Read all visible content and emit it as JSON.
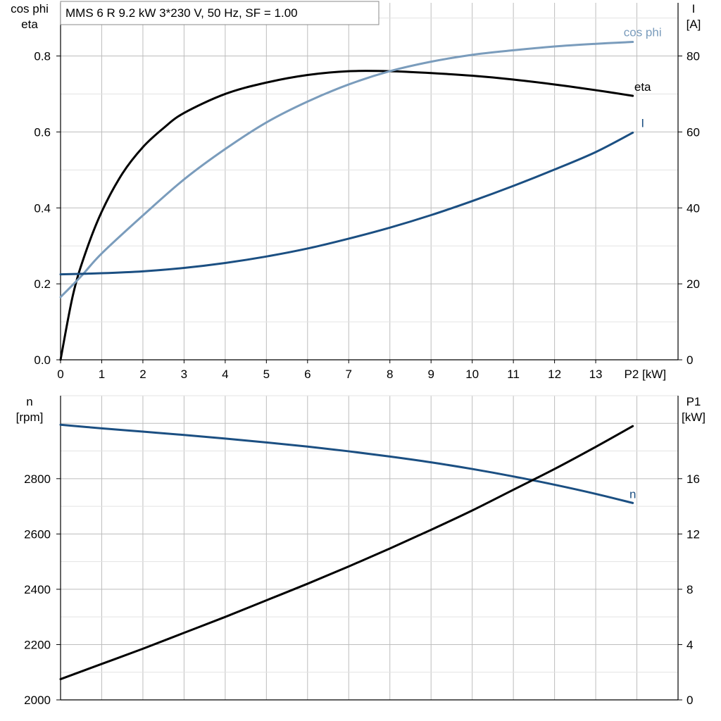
{
  "title_box": "MMS 6 R   9.2 kW   3*230 V, 50 Hz, SF = 1.00",
  "colors": {
    "eta": "#000000",
    "cos_phi": "#7a9cbc",
    "current": "#1b4f82",
    "n": "#1b4f82",
    "p1": "#000000"
  },
  "chart_data": [
    {
      "type": "line",
      "id": "top",
      "left_axis_label": [
        "cos phi",
        "eta"
      ],
      "right_axis_label": [
        "I",
        "[A]"
      ],
      "xlabel": "P2 [kW]",
      "xlim": [
        0,
        15
      ],
      "ylim_left": [
        0,
        0.94
      ],
      "ylim_right": [
        0,
        94
      ],
      "x_ticks": [
        0,
        1,
        2,
        3,
        4,
        5,
        6,
        7,
        8,
        9,
        10,
        11,
        12,
        13
      ],
      "left_ticks": [
        0.0,
        0.2,
        0.4,
        0.6,
        0.8
      ],
      "left_tick_labels": [
        "0.0",
        "0.2",
        "0.4",
        "0.6",
        "0.8"
      ],
      "right_ticks": [
        0,
        20,
        40,
        60,
        80
      ],
      "series": [
        {
          "name": "eta",
          "axis": "left",
          "color_key": "eta",
          "x": [
            0,
            0.3,
            0.6,
            1,
            1.5,
            2,
            2.5,
            3,
            4,
            5,
            6,
            7,
            8,
            9,
            10,
            11,
            12,
            13,
            13.9
          ],
          "y": [
            0.0,
            0.17,
            0.28,
            0.39,
            0.49,
            0.56,
            0.61,
            0.65,
            0.7,
            0.73,
            0.75,
            0.76,
            0.76,
            0.755,
            0.748,
            0.738,
            0.725,
            0.71,
            0.695
          ]
        },
        {
          "name": "cos phi",
          "axis": "left",
          "color_key": "cos_phi",
          "x": [
            0,
            0.5,
            1,
            2,
            3,
            4,
            5,
            6,
            7,
            8,
            9,
            10,
            11,
            12,
            13,
            13.9
          ],
          "y": [
            0.165,
            0.22,
            0.28,
            0.38,
            0.475,
            0.555,
            0.625,
            0.68,
            0.725,
            0.76,
            0.785,
            0.803,
            0.815,
            0.825,
            0.832,
            0.837
          ]
        },
        {
          "name": "I",
          "axis": "right",
          "color_key": "current",
          "x": [
            0,
            1,
            2,
            3,
            4,
            5,
            6,
            7,
            8,
            9,
            10,
            11,
            12,
            13,
            13.9
          ],
          "y": [
            22.5,
            22.8,
            23.3,
            24.2,
            25.5,
            27.2,
            29.3,
            31.9,
            34.8,
            38.1,
            41.8,
            45.8,
            50.1,
            54.7,
            59.8
          ]
        }
      ]
    },
    {
      "type": "line",
      "id": "bottom",
      "left_axis_label": [
        "n",
        "[rpm]"
      ],
      "right_axis_label": [
        "P1",
        "[kW]"
      ],
      "xlim": [
        0,
        15
      ],
      "ylim_left": [
        2000,
        3100
      ],
      "ylim_right": [
        0,
        22
      ],
      "left_ticks": [
        2000,
        2200,
        2400,
        2600,
        2800
      ],
      "right_ticks": [
        0,
        4,
        8,
        12,
        16
      ],
      "series": [
        {
          "name": "n",
          "axis": "left",
          "color_key": "n",
          "x": [
            0,
            1,
            2,
            3,
            4,
            5,
            6,
            7,
            8,
            9,
            10,
            11,
            12,
            13,
            13.9
          ],
          "y": [
            2995,
            2982,
            2970,
            2958,
            2945,
            2931,
            2916,
            2899,
            2880,
            2859,
            2835,
            2808,
            2778,
            2745,
            2712
          ]
        },
        {
          "name": "",
          "axis": "right",
          "color_key": "p1",
          "x": [
            0,
            1,
            2,
            3,
            4,
            5,
            6,
            7,
            8,
            9,
            10,
            11,
            12,
            13,
            13.9
          ],
          "y": [
            1.5,
            2.6,
            3.7,
            4.85,
            6.0,
            7.2,
            8.4,
            9.65,
            10.95,
            12.3,
            13.7,
            15.2,
            16.7,
            18.3,
            19.8
          ]
        }
      ]
    }
  ]
}
